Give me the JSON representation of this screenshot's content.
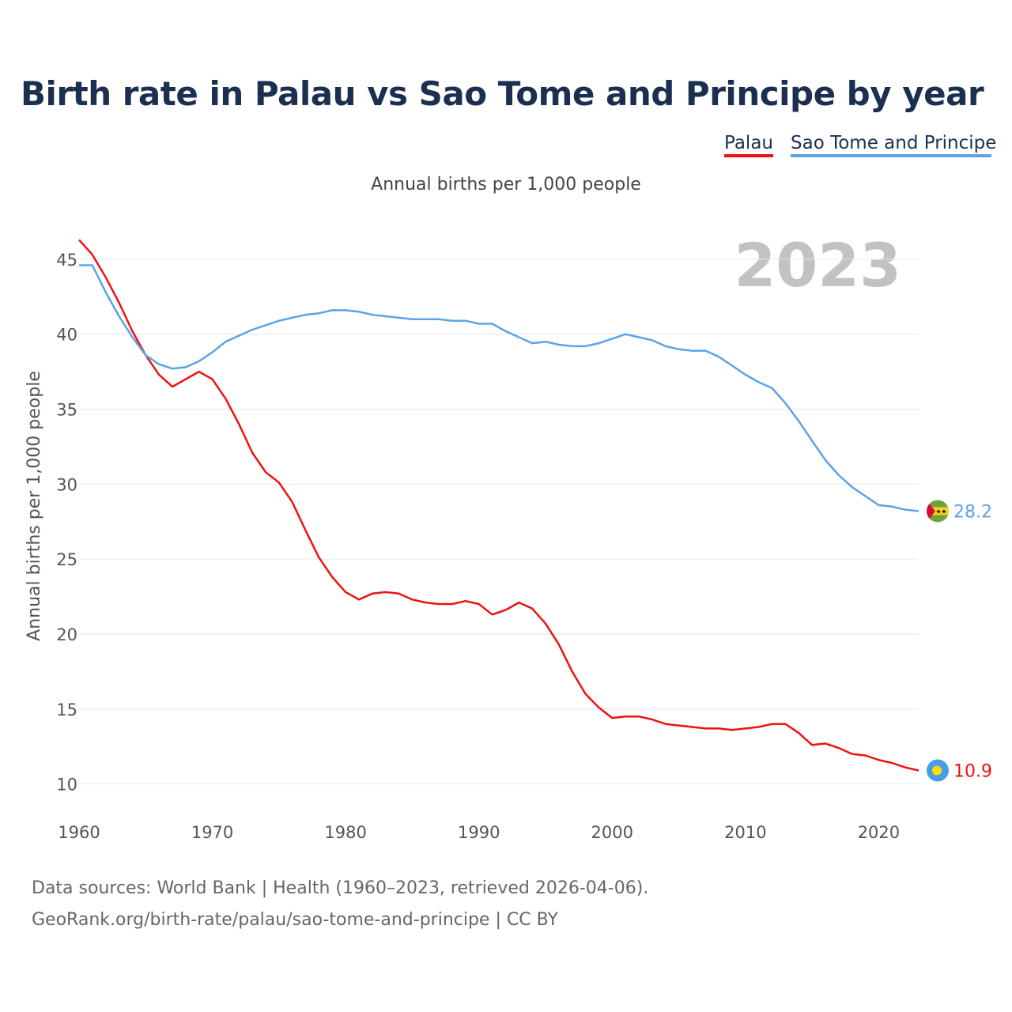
{
  "chart_data": {
    "type": "line",
    "title": "Birth rate in Palau vs Sao Tome and Principe by year",
    "subtitle": "Annual births per 1,000 people",
    "ylabel": "Annual births per 1,000 people",
    "xlabel": "",
    "xlim": [
      1960,
      2023
    ],
    "ylim": [
      8.5,
      47
    ],
    "x_ticks": [
      1960,
      1970,
      1980,
      1990,
      2000,
      2010,
      2020
    ],
    "y_ticks": [
      10,
      15,
      20,
      25,
      30,
      35,
      40,
      45
    ],
    "grid": true,
    "legend_position": "top-right",
    "year_label": "2023",
    "x": [
      1960,
      1961,
      1962,
      1963,
      1964,
      1965,
      1966,
      1967,
      1968,
      1969,
      1970,
      1971,
      1972,
      1973,
      1974,
      1975,
      1976,
      1977,
      1978,
      1979,
      1980,
      1981,
      1982,
      1983,
      1984,
      1985,
      1986,
      1987,
      1988,
      1989,
      1990,
      1991,
      1992,
      1993,
      1994,
      1995,
      1996,
      1997,
      1998,
      1999,
      2000,
      2001,
      2002,
      2003,
      2004,
      2005,
      2006,
      2007,
      2008,
      2009,
      2010,
      2011,
      2012,
      2013,
      2014,
      2015,
      2016,
      2017,
      2018,
      2019,
      2020,
      2021,
      2022,
      2023
    ],
    "series": [
      {
        "name": "Palau",
        "color": "#ee1111",
        "end_label": "10.9",
        "values": [
          46.3,
          45.3,
          43.8,
          42.1,
          40.2,
          38.6,
          37.3,
          36.5,
          37.0,
          37.5,
          37.0,
          35.7,
          34.0,
          32.1,
          30.8,
          30.1,
          28.8,
          26.9,
          25.1,
          23.8,
          22.8,
          22.3,
          22.7,
          22.8,
          22.7,
          22.3,
          22.1,
          22.0,
          22.0,
          22.2,
          22.0,
          21.3,
          21.6,
          22.1,
          21.7,
          20.7,
          19.3,
          17.5,
          16.0,
          15.1,
          14.4,
          14.5,
          14.5,
          14.3,
          14.0,
          13.9,
          13.8,
          13.7,
          13.7,
          13.6,
          13.7,
          13.8,
          14.0,
          14.0,
          13.4,
          12.6,
          12.7,
          12.4,
          12.0,
          11.9,
          11.6,
          11.4,
          11.1,
          10.9
        ]
      },
      {
        "name": "Sao Tome and Principe",
        "color": "#5ba3e8",
        "end_label": "28.2",
        "values": [
          44.6,
          44.6,
          42.8,
          41.2,
          39.8,
          38.6,
          38.0,
          37.7,
          37.8,
          38.2,
          38.8,
          39.5,
          39.9,
          40.3,
          40.6,
          40.9,
          41.1,
          41.3,
          41.4,
          41.6,
          41.6,
          41.5,
          41.3,
          41.2,
          41.1,
          41.0,
          41.0,
          41.0,
          40.9,
          40.9,
          40.7,
          40.7,
          40.2,
          39.8,
          39.4,
          39.5,
          39.3,
          39.2,
          39.2,
          39.4,
          39.7,
          40.0,
          39.8,
          39.6,
          39.2,
          39.0,
          38.9,
          38.9,
          38.5,
          37.9,
          37.3,
          36.8,
          36.4,
          35.4,
          34.2,
          32.9,
          31.6,
          30.6,
          29.8,
          29.2,
          28.6,
          28.5,
          28.3,
          28.2
        ]
      }
    ]
  },
  "legend": {
    "palau_label": "Palau",
    "stp_label": "Sao Tome and Principe",
    "palau_color": "#ee1111",
    "stp_color": "#5ba3e8"
  },
  "source": {
    "line1": "Data sources: World Bank | Health (1960–2023, retrieved 2026-04-06).",
    "line2": "GeoRank.org/birth-rate/palau/sao-tome-and-principe | CC BY"
  }
}
